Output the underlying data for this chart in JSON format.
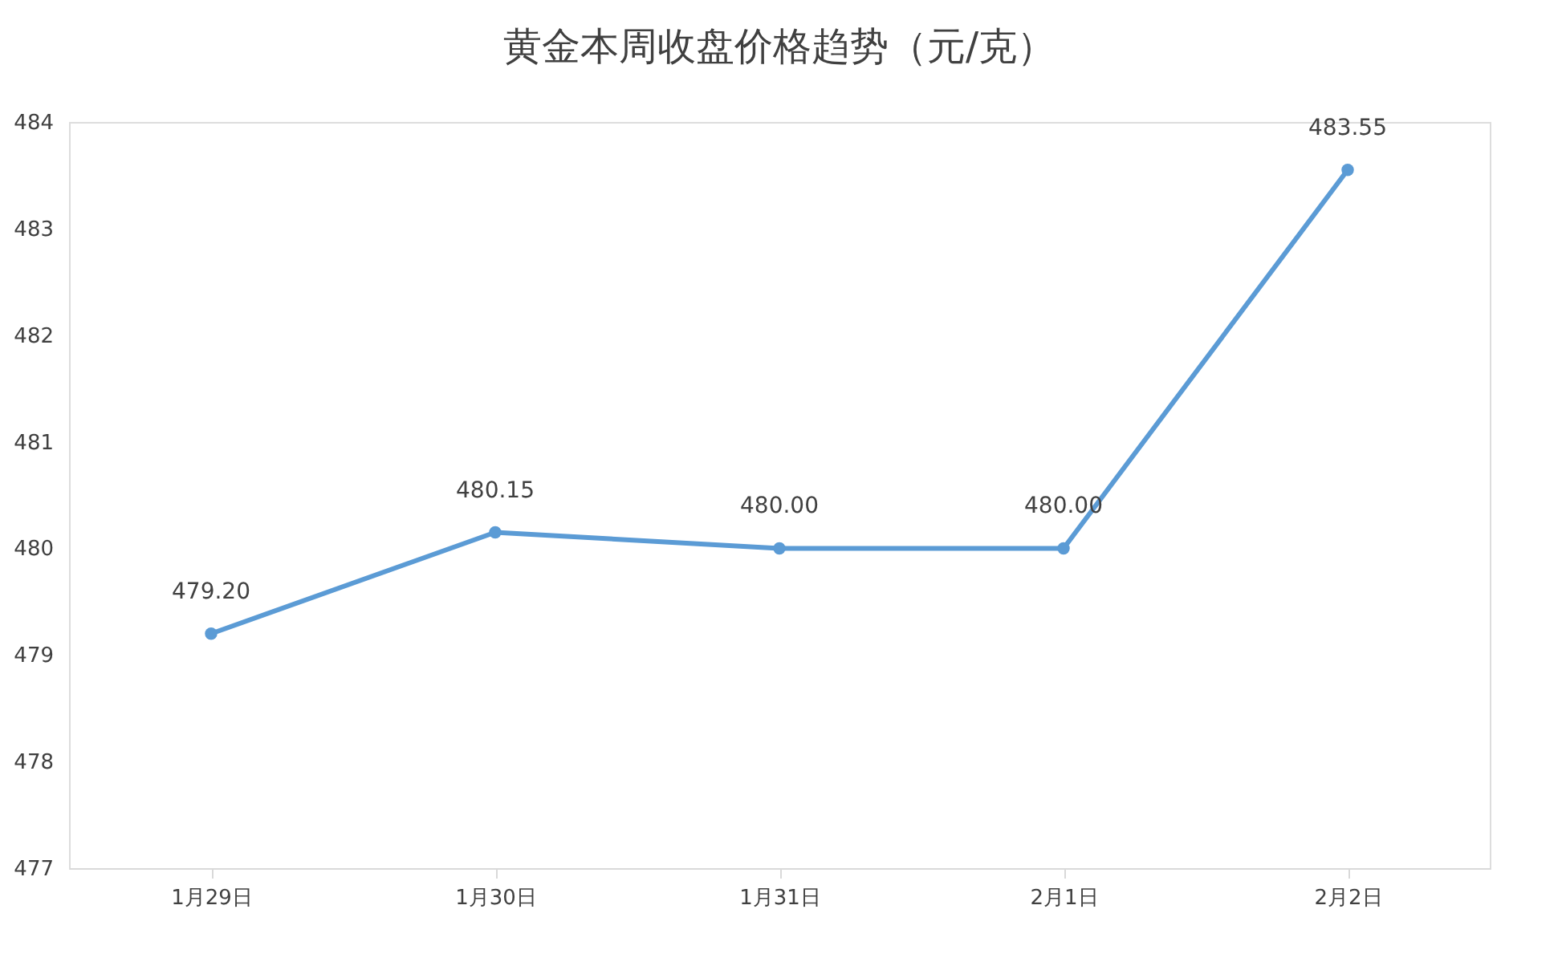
{
  "chart_data": {
    "type": "line",
    "title": "黄金本周收盘价格趋势（元/克）",
    "categories": [
      "1月29日",
      "1月30日",
      "1月31日",
      "2月1日",
      "2月2日"
    ],
    "series": [
      {
        "color": "#5b9bd5",
        "values": [
          479.2,
          480.15,
          480.0,
          480.0,
          483.55
        ],
        "value_labels": [
          "479.20",
          "480.15",
          "480.00",
          "480.00",
          "483.55"
        ]
      }
    ],
    "ylim": [
      477,
      484
    ],
    "yticks": [
      477,
      478,
      479,
      480,
      481,
      482,
      483,
      484
    ],
    "grid": false,
    "marker": "circle",
    "line_style": "solid"
  }
}
